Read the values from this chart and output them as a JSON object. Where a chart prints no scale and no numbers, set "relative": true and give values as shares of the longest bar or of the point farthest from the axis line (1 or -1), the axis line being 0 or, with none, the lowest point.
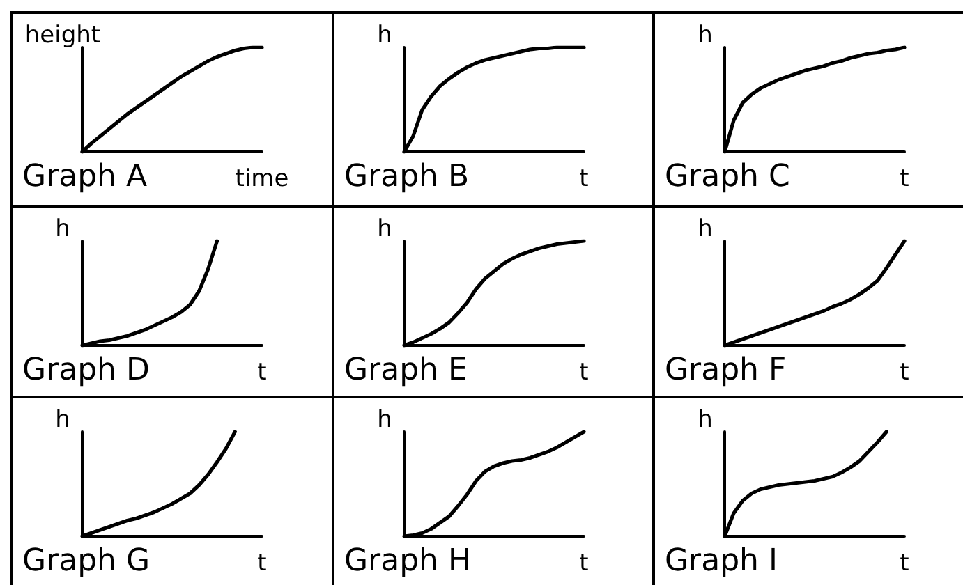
{
  "chart_data": [
    {
      "type": "line",
      "title": "Graph A",
      "xlabel": "time",
      "ylabel": "height",
      "relative": true,
      "color": "#000000",
      "categories": [
        null,
        null,
        null,
        null,
        null,
        null,
        null,
        null,
        null,
        null,
        null,
        null,
        null,
        null,
        null,
        null,
        null,
        null,
        null,
        null,
        null
      ],
      "values": [
        0,
        0.08,
        0.15,
        0.22,
        0.29,
        0.36,
        0.42,
        0.48,
        0.54,
        0.6,
        0.66,
        0.72,
        0.77,
        0.82,
        0.87,
        0.91,
        0.94,
        0.97,
        0.99,
        1,
        1
      ],
      "tick_labels": false
    },
    {
      "type": "line",
      "title": "Graph B",
      "xlabel": "t",
      "ylabel": "h",
      "relative": true,
      "color": "#000000",
      "categories": [
        null,
        null,
        null,
        null,
        null,
        null,
        null,
        null,
        null,
        null,
        null,
        null,
        null,
        null,
        null,
        null,
        null,
        null,
        null,
        null,
        null
      ],
      "values": [
        0,
        0.15,
        0.4,
        0.53,
        0.63,
        0.7,
        0.76,
        0.81,
        0.85,
        0.88,
        0.9,
        0.92,
        0.94,
        0.96,
        0.98,
        0.99,
        0.99,
        1,
        1,
        1,
        1
      ],
      "tick_labels": false
    },
    {
      "type": "line",
      "title": "Graph C",
      "xlabel": "t",
      "ylabel": "h",
      "relative": true,
      "color": "#000000",
      "categories": [
        null,
        null,
        null,
        null,
        null,
        null,
        null,
        null,
        null,
        null,
        null,
        null,
        null,
        null,
        null,
        null,
        null,
        null,
        null,
        null,
        null
      ],
      "values": [
        0,
        0.3,
        0.47,
        0.55,
        0.61,
        0.65,
        0.69,
        0.72,
        0.75,
        0.78,
        0.8,
        0.82,
        0.85,
        0.87,
        0.9,
        0.92,
        0.94,
        0.95,
        0.97,
        0.98,
        1
      ],
      "tick_labels": false
    },
    {
      "type": "line",
      "title": "Graph D",
      "xlabel": "t",
      "ylabel": "h",
      "relative": true,
      "color": "#000000",
      "categories": [
        null,
        null,
        null,
        null,
        null,
        null,
        null,
        null,
        null,
        null,
        null,
        null,
        null,
        null,
        null,
        null,
        null,
        null,
        null,
        null,
        null
      ],
      "values": [
        0,
        0.02,
        0.04,
        0.05,
        0.07,
        0.09,
        0.12,
        0.15,
        0.19,
        0.23,
        0.27,
        0.32,
        0.39,
        0.52,
        0.73,
        1,
        null,
        null,
        null,
        null,
        null
      ],
      "tick_labels": false
    },
    {
      "type": "line",
      "title": "Graph E",
      "xlabel": "t",
      "ylabel": "h",
      "relative": true,
      "color": "#000000",
      "categories": [
        null,
        null,
        null,
        null,
        null,
        null,
        null,
        null,
        null,
        null,
        null,
        null,
        null,
        null,
        null,
        null,
        null,
        null,
        null,
        null,
        null
      ],
      "values": [
        0,
        0.03,
        0.07,
        0.11,
        0.16,
        0.22,
        0.31,
        0.41,
        0.54,
        0.64,
        0.71,
        0.78,
        0.83,
        0.87,
        0.9,
        0.93,
        0.95,
        0.97,
        0.98,
        0.99,
        1
      ],
      "tick_labels": false
    },
    {
      "type": "line",
      "title": "Graph F",
      "xlabel": "t",
      "ylabel": "h",
      "relative": true,
      "color": "#000000",
      "categories": [
        null,
        null,
        null,
        null,
        null,
        null,
        null,
        null,
        null,
        null,
        null,
        null,
        null,
        null,
        null,
        null,
        null,
        null,
        null,
        null,
        null
      ],
      "values": [
        0,
        0.03,
        0.06,
        0.09,
        0.12,
        0.15,
        0.18,
        0.21,
        0.24,
        0.27,
        0.3,
        0.33,
        0.37,
        0.4,
        0.44,
        0.49,
        0.55,
        0.62,
        0.74,
        0.87,
        1
      ],
      "tick_labels": false
    },
    {
      "type": "line",
      "title": "Graph G",
      "xlabel": "t",
      "ylabel": "h",
      "relative": true,
      "color": "#000000",
      "categories": [
        null,
        null,
        null,
        null,
        null,
        null,
        null,
        null,
        null,
        null,
        null,
        null,
        null,
        null,
        null,
        null,
        null,
        null,
        null,
        null,
        null
      ],
      "values": [
        0,
        0.03,
        0.06,
        0.09,
        0.12,
        0.15,
        0.17,
        0.2,
        0.23,
        0.27,
        0.31,
        0.36,
        0.41,
        0.49,
        0.59,
        0.71,
        0.84,
        1,
        null,
        null,
        null
      ],
      "tick_labels": false
    },
    {
      "type": "line",
      "title": "Graph H",
      "xlabel": "t",
      "ylabel": "h",
      "relative": true,
      "color": "#000000",
      "categories": [
        null,
        null,
        null,
        null,
        null,
        null,
        null,
        null,
        null,
        null,
        null,
        null,
        null,
        null,
        null,
        null,
        null,
        null,
        null,
        null,
        null
      ],
      "values": [
        0,
        0.01,
        0.03,
        0.07,
        0.13,
        0.19,
        0.29,
        0.4,
        0.53,
        0.62,
        0.67,
        0.7,
        0.72,
        0.73,
        0.75,
        0.78,
        0.81,
        0.85,
        0.9,
        0.95,
        1
      ],
      "tick_labels": false
    },
    {
      "type": "line",
      "title": "Graph I",
      "xlabel": "t",
      "ylabel": "h",
      "relative": true,
      "color": "#000000",
      "categories": [
        null,
        null,
        null,
        null,
        null,
        null,
        null,
        null,
        null,
        null,
        null,
        null,
        null,
        null,
        null,
        null,
        null,
        null,
        null,
        null,
        null
      ],
      "values": [
        0,
        0.22,
        0.34,
        0.41,
        0.45,
        0.47,
        0.49,
        0.5,
        0.51,
        0.52,
        0.53,
        0.55,
        0.57,
        0.61,
        0.66,
        0.72,
        0.81,
        0.9,
        1,
        null,
        null
      ],
      "tick_labels": false
    }
  ]
}
